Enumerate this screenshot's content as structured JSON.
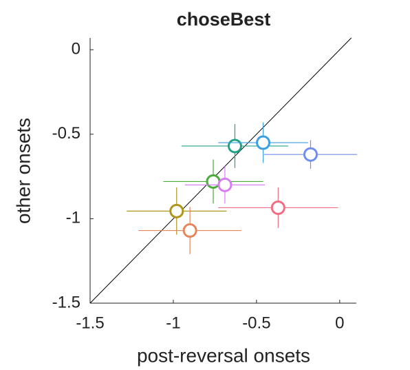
{
  "chart_data": {
    "type": "scatter",
    "title": "choseBest",
    "x_label": "post-reversal onsets",
    "y_label": "other onsets",
    "xlim": [
      -1.5,
      0.1
    ],
    "ylim": [
      -1.5,
      0.07
    ],
    "xticks": [
      -1.5,
      -1,
      -0.5,
      0
    ],
    "yticks": [
      -1.5,
      -1,
      -0.5,
      0
    ],
    "identity_line": true,
    "x": [
      -0.63,
      -0.46,
      -0.175,
      -0.76,
      -0.69,
      -0.37,
      -0.98,
      -0.9
    ],
    "values": [
      -0.57,
      -0.55,
      -0.62,
      -0.78,
      -0.8,
      -0.935,
      -0.955,
      -1.07
    ],
    "xerr": [
      0.32,
      0.27,
      0.28,
      0.3,
      0.24,
      0.36,
      0.3,
      0.31
    ],
    "yerr": [
      0.13,
      0.12,
      0.085,
      0.13,
      0.11,
      0.12,
      0.14,
      0.14
    ],
    "colors": [
      "#1fa386",
      "#3a9ee0",
      "#6f8ef2",
      "#4aab3a",
      "#d77cf2",
      "#f26c82",
      "#b0951c",
      "#e8855a"
    ]
  }
}
